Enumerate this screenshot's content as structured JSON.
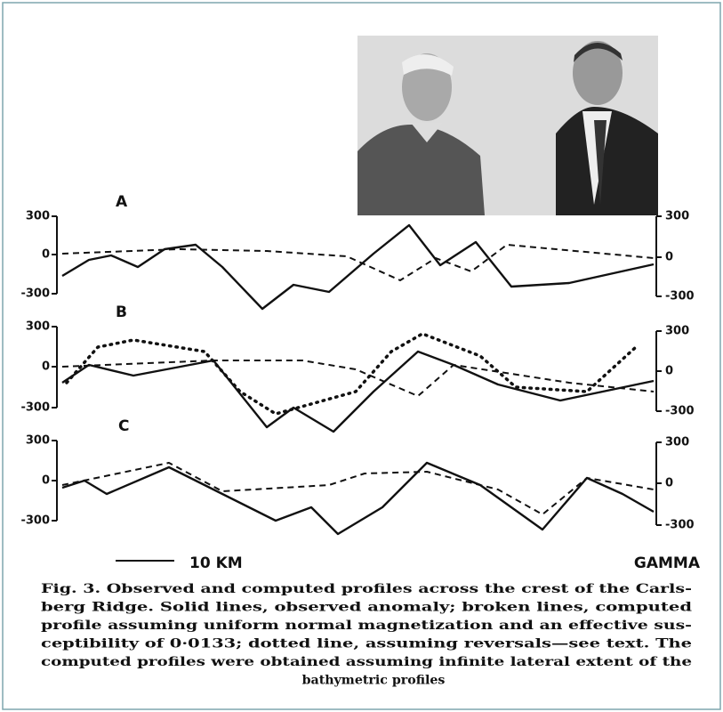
{
  "figure": {
    "panels": [
      {
        "label": "A",
        "left_ticks": [
          300,
          0,
          -300
        ],
        "right_ticks": [
          300,
          0,
          -300
        ]
      },
      {
        "label": "B",
        "left_ticks": [
          300,
          0,
          -300
        ],
        "right_ticks": [
          300,
          0,
          -300
        ]
      },
      {
        "label": "C",
        "left_ticks": [
          300,
          0,
          -300
        ],
        "right_ticks": [
          300,
          0,
          -300
        ]
      }
    ],
    "scale_bar": "10 KM",
    "unit": "GAMMA",
    "caption_lines": [
      "Fig. 3.    Observed and computed profiles across the crest of the Carls-",
      "berg Ridge.    Solid lines, observed anomaly; broken lines, computed",
      "profile assuming uniform normal magnetization and an effective sus-",
      "ceptibility of 0·0133; dotted line, assuming reversals—see text.   The",
      "computed profiles were obtained assuming infinite lateral extent of the",
      "bathymetric profiles"
    ]
  }
}
